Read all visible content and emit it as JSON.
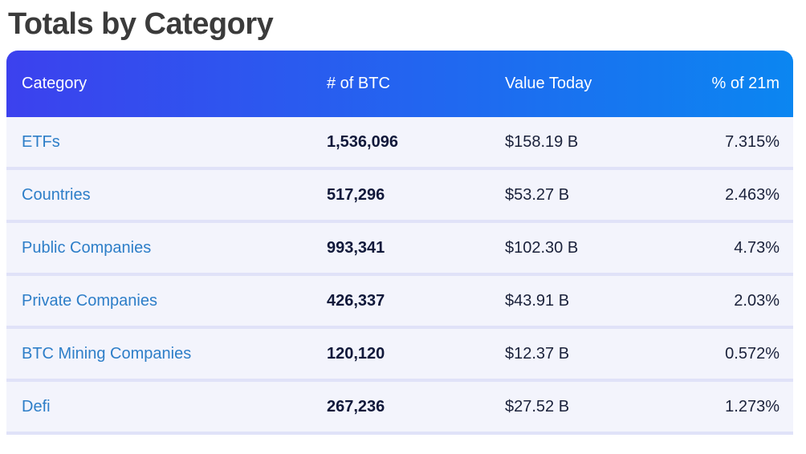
{
  "page": {
    "title": "Totals by Category"
  },
  "table": {
    "columns": {
      "category": "Category",
      "btc": "# of BTC",
      "value": "Value Today",
      "pct": "% of 21m"
    },
    "rows": [
      {
        "category": "ETFs",
        "btc": "1,536,096",
        "value": "$158.19 B",
        "pct": "7.315%"
      },
      {
        "category": "Countries",
        "btc": "517,296",
        "value": "$53.27 B",
        "pct": "2.463%"
      },
      {
        "category": "Public Companies",
        "btc": "993,341",
        "value": "$102.30 B",
        "pct": "4.73%"
      },
      {
        "category": "Private Companies",
        "btc": "426,337",
        "value": "$43.91 B",
        "pct": "2.03%"
      },
      {
        "category": "BTC Mining Companies",
        "btc": "120,120",
        "value": "$12.37 B",
        "pct": "0.572%"
      },
      {
        "category": "Defi",
        "btc": "267,236",
        "value": "$27.52 B",
        "pct": "1.273%"
      }
    ]
  },
  "colors": {
    "header_gradient_start": "#3c41ee",
    "header_gradient_end": "#0b86f1",
    "row_background": "#f3f4fc",
    "row_separator": "#e0e2f8",
    "category_link": "#2d7ec8",
    "number_text": "#10183a",
    "value_text": "#1a213a",
    "title_text": "#3b3b3b"
  }
}
